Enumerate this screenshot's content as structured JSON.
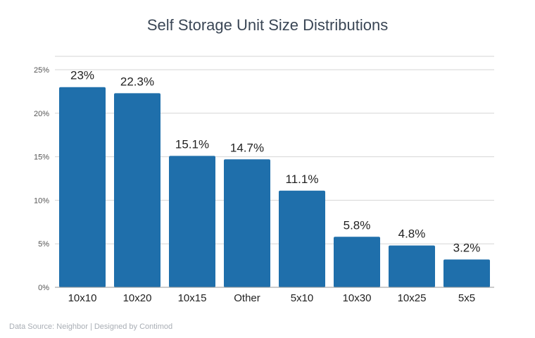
{
  "source_note": "Data Source: Neighbor | Designed by Contimod",
  "chart_data": {
    "type": "bar",
    "title": "Self Storage Unit Size Distributions",
    "xlabel": "",
    "ylabel": "",
    "categories": [
      "10x10",
      "10x20",
      "10x15",
      "Other",
      "5x10",
      "10x30",
      "10x25",
      "5x5"
    ],
    "values": [
      23,
      22.3,
      15.1,
      14.7,
      11.1,
      5.8,
      4.8,
      3.2
    ],
    "data_labels": [
      "23%",
      "22.3%",
      "15.1%",
      "14.7%",
      "11.1%",
      "5.8%",
      "4.8%",
      "3.2%"
    ],
    "yticks": [
      0,
      5,
      10,
      15,
      20,
      25
    ],
    "ytick_labels": [
      "0%",
      "5%",
      "10%",
      "15%",
      "20%",
      "25%"
    ],
    "ylim": [
      0,
      25
    ],
    "grid": true,
    "legend": "none",
    "bar_color": "#1f6fab"
  }
}
